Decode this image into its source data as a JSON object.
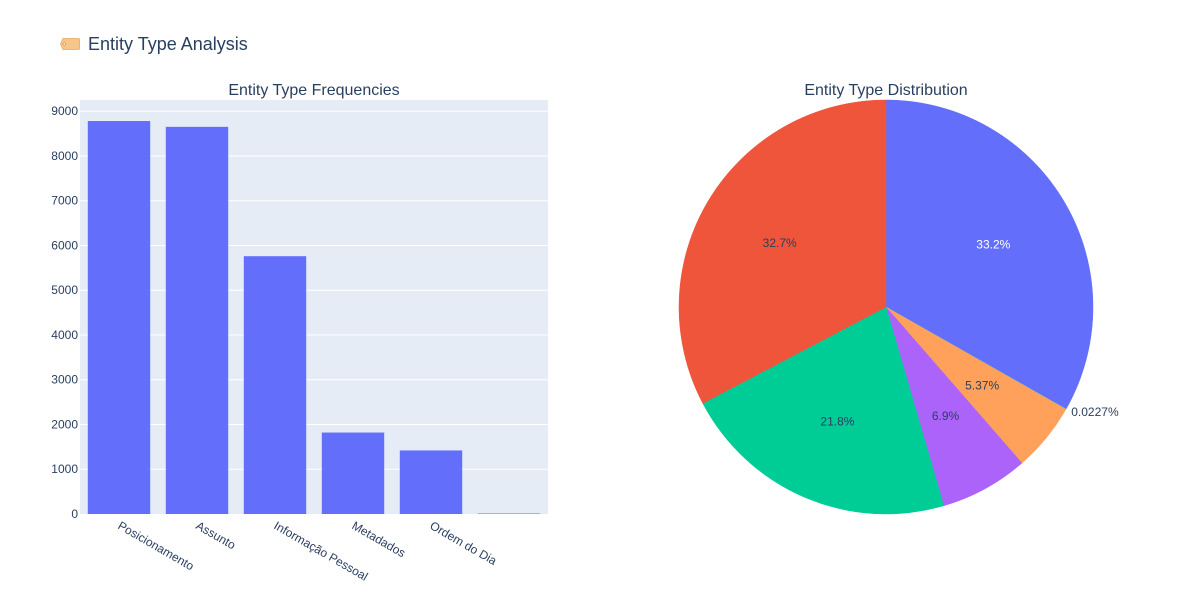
{
  "header": {
    "title": "Entity Type Analysis",
    "icon": "tag-icon"
  },
  "chart_data": [
    {
      "type": "bar",
      "title": "Entity Type Frequencies",
      "xlabel": "",
      "ylabel": "",
      "categories": [
        "Posicionamento",
        "Assunto",
        "Informação Pessoal",
        "Metadados",
        "Ordem do Dia",
        ""
      ],
      "values": [
        8780,
        8650,
        5760,
        1820,
        1420,
        6
      ],
      "ylim": [
        0,
        9250
      ],
      "yticks": [
        0,
        1000,
        2000,
        3000,
        4000,
        5000,
        6000,
        7000,
        8000,
        9000
      ],
      "grid": true,
      "color": "#636efa",
      "plot_bg": "#e5ecf6"
    },
    {
      "type": "pie",
      "title": "Entity Type Distribution",
      "slices": [
        {
          "label": "33.2%",
          "value": 33.2,
          "color": "#636efa",
          "label_color": "#ffffff"
        },
        {
          "label": "0.0227%",
          "value": 0.0227,
          "color": "#19d3f3",
          "label_color": "#2a3f5f"
        },
        {
          "label": "5.37%",
          "value": 5.37,
          "color": "#ffa15a",
          "label_color": "#2a3f5f"
        },
        {
          "label": "6.9%",
          "value": 6.9,
          "color": "#ab63fa",
          "label_color": "#2a3f5f"
        },
        {
          "label": "21.8%",
          "value": 21.8,
          "color": "#00cc96",
          "label_color": "#2a3f5f"
        },
        {
          "label": "32.7%",
          "value": 32.7,
          "color": "#ef553b",
          "label_color": "#2a3f5f"
        }
      ]
    }
  ]
}
